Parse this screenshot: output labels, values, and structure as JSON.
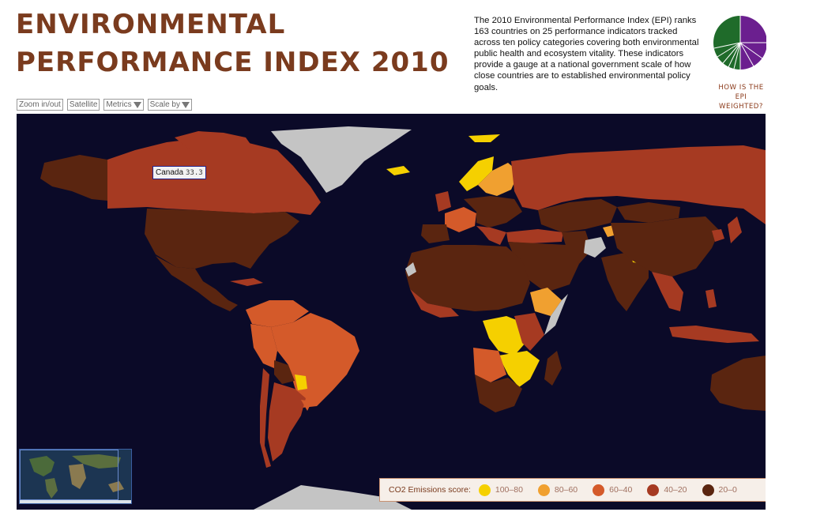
{
  "header": {
    "title_line1": "ENVIRONMENTAL",
    "title_line2": "PERFORMANCE INDEX 2010",
    "description": "The 2010 Environmental Performance Index (EPI) ranks 163 countries on 25 performance indicators tracked across ten policy categories covering both environmental public health and ecosystem vitality. These indicators provide a gauge at a national government scale of how close countries are to established environmental policy goals.",
    "weighting_link_line1": "HOW IS THE",
    "weighting_link_line2": "EPI",
    "weighting_link_line3": "WEIGHTED?"
  },
  "toolbar": {
    "zoom_label": "Zoom in/out",
    "satellite_label": "Satellite",
    "metrics_label": "Metrics",
    "scale_label": "Scale by"
  },
  "tooltip": {
    "country": "Canada",
    "value": "33.3"
  },
  "legend": {
    "title": "CO2 Emissions score:",
    "items": [
      {
        "label": "100–80",
        "color": "#f5d000"
      },
      {
        "label": "80–60",
        "color": "#f0a030"
      },
      {
        "label": "60–40",
        "color": "#d45a2a"
      },
      {
        "label": "40–20",
        "color": "#a63a22"
      },
      {
        "label": "20–0",
        "color": "#5a2510"
      }
    ]
  },
  "colors": {
    "title": "#7a3b1e",
    "ocean": "#0b0a28",
    "no_data": "#c4c4c4",
    "epi_green": "#1f6b2a",
    "epi_purple": "#6b1f8f"
  },
  "icons": {
    "metrics_dropdown": "triangle-down-icon",
    "scale_dropdown": "triangle-down-icon",
    "weighting_pie": "pie-chart-icon"
  }
}
